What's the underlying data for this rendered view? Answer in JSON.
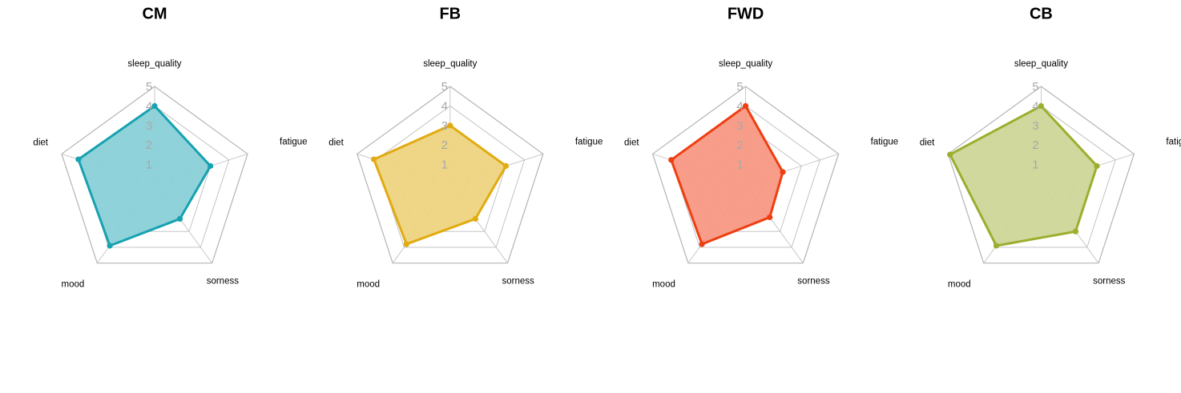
{
  "chart_data": [
    {
      "type": "radar",
      "title": "CM",
      "axes": [
        "sleep_quality",
        "fatigue",
        "sorness",
        "mood",
        "diet"
      ],
      "ticks": [
        "1",
        "2",
        "3",
        "4",
        "5"
      ],
      "range": [
        0,
        5
      ],
      "values": [
        4.0,
        3.0,
        2.2,
        3.9,
        4.1
      ],
      "color": "#17a2b1",
      "fill": "#8ad0d7"
    },
    {
      "type": "radar",
      "title": "FB",
      "axes": [
        "sleep_quality",
        "fatigue",
        "sorness",
        "mood",
        "diet"
      ],
      "ticks": [
        "1",
        "2",
        "3",
        "4",
        "5"
      ],
      "range": [
        0,
        5
      ],
      "values": [
        3.0,
        3.0,
        2.2,
        3.8,
        4.1
      ],
      "color": "#e1ab11",
      "fill": "#edd47f"
    },
    {
      "type": "radar",
      "title": "FWD",
      "axes": [
        "sleep_quality",
        "fatigue",
        "sorness",
        "mood",
        "diet"
      ],
      "ticks": [
        "1",
        "2",
        "3",
        "4",
        "5"
      ],
      "range": [
        0,
        5
      ],
      "values": [
        4.0,
        2.0,
        2.1,
        3.8,
        4.0
      ],
      "color": "#ee3f12",
      "fill": "#f89883"
    },
    {
      "type": "radar",
      "title": "CB",
      "axes": [
        "sleep_quality",
        "fatigue",
        "sorness",
        "mood",
        "diet"
      ],
      "ticks": [
        "1",
        "2",
        "3",
        "4",
        "5"
      ],
      "range": [
        0,
        5
      ],
      "values": [
        4.0,
        3.0,
        3.0,
        3.9,
        4.9
      ],
      "color": "#9cae2e",
      "fill": "#cfd698"
    }
  ]
}
